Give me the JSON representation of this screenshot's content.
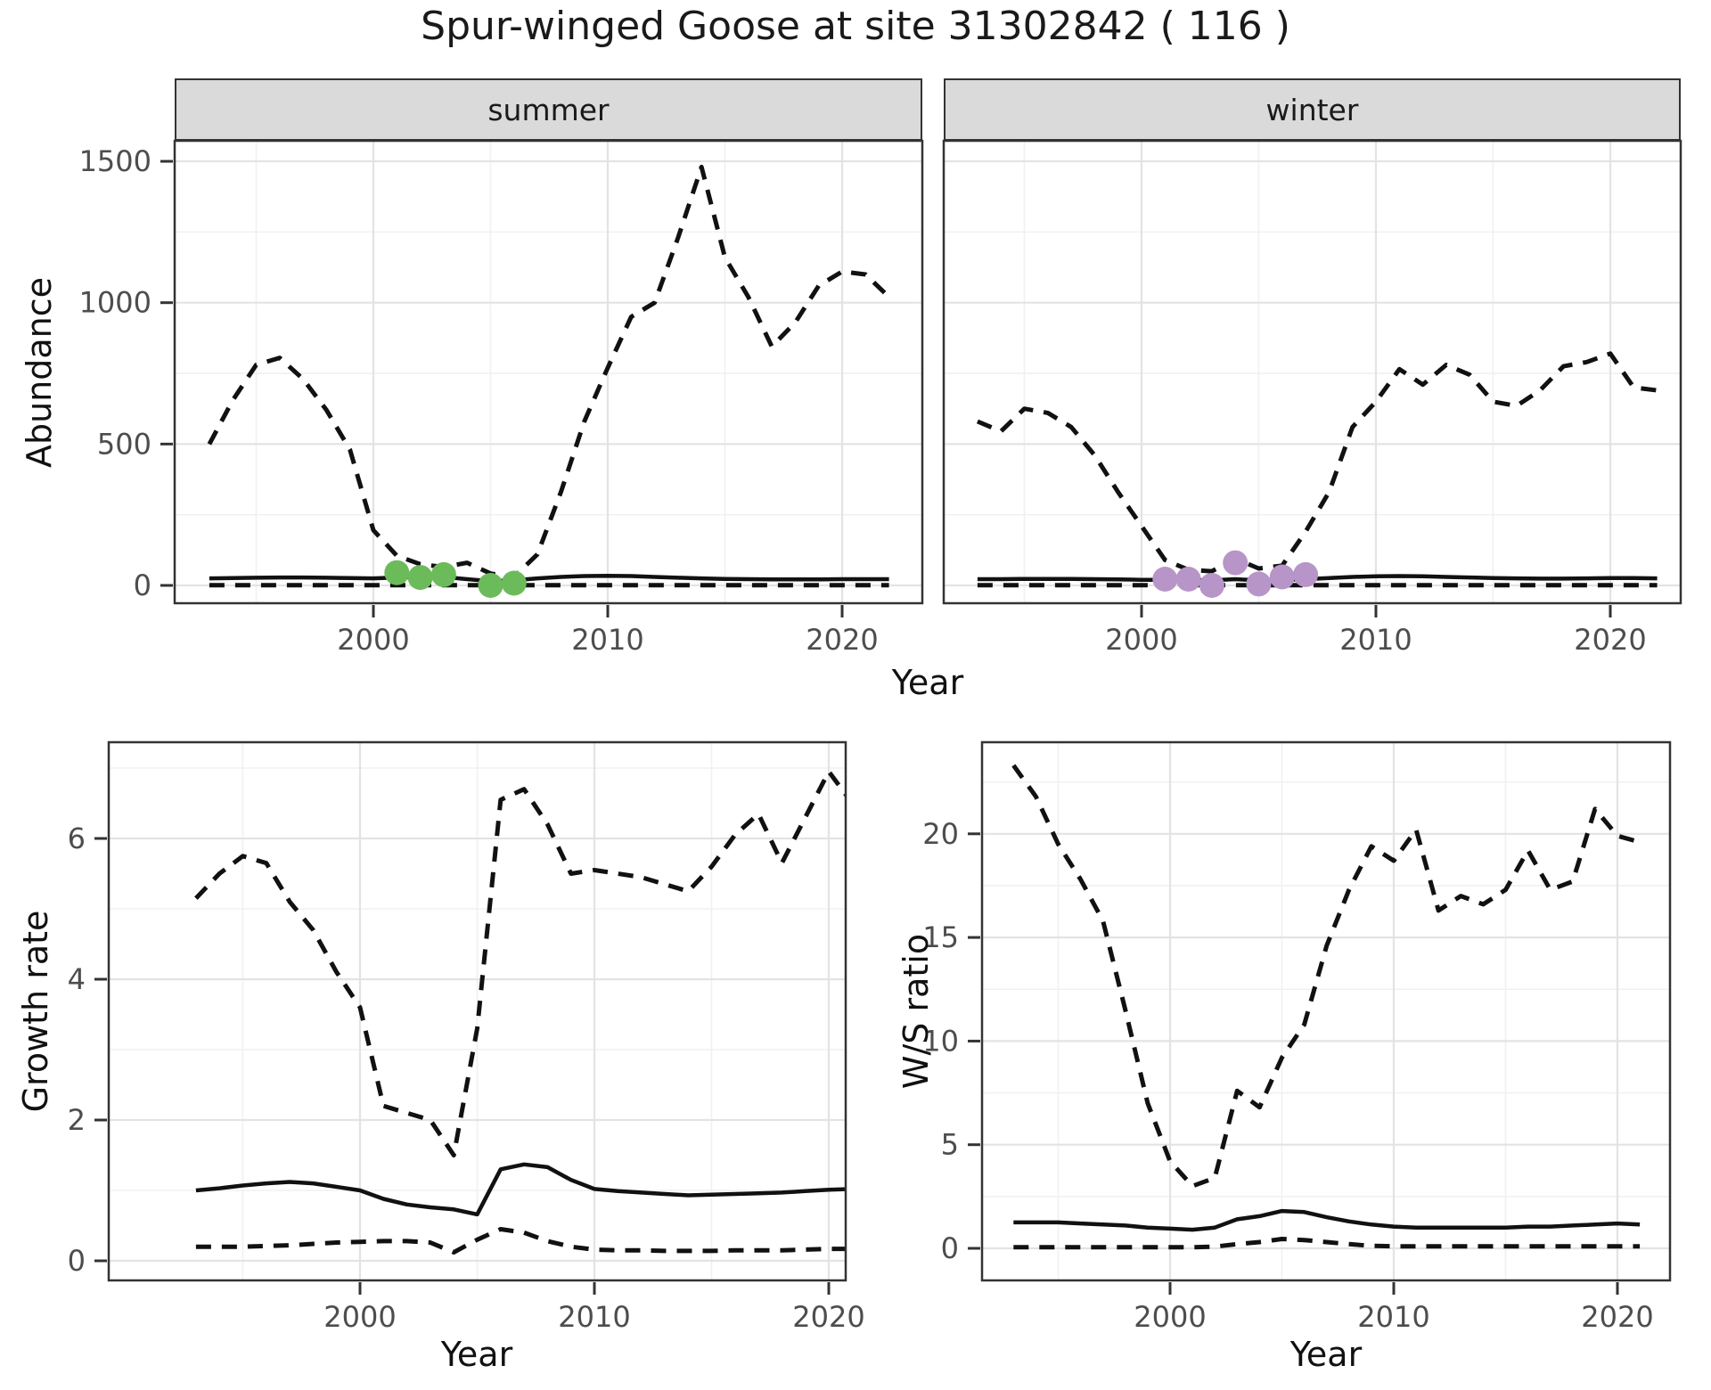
{
  "title": "Spur-winged Goose at site 31302842 ( 116 )",
  "facets": {
    "summer": "summer",
    "winter": "winter"
  },
  "axis_labels": {
    "top_x": "Year",
    "bottom_left_x": "Year",
    "bottom_right_x": "Year",
    "abundance_y": "Abundance",
    "growth_y": "Growth rate",
    "ws_y": "W/S ratio"
  },
  "colors": {
    "line": "#111111",
    "grid_major": "#e3e3e3",
    "grid_minor": "#f1f1f1",
    "panel_border": "#333333",
    "strip_bg": "#dadada",
    "tick_text": "#4d4d4d",
    "summer_point": "#6cbb5b",
    "winter_point": "#b795c8"
  },
  "chart_data": [
    {
      "id": "abundance-summer",
      "type": "line",
      "title": "summer",
      "xlabel": "Year",
      "ylabel": "Abundance",
      "x": [
        1993,
        1994,
        1995,
        1996,
        1997,
        1998,
        1999,
        2000,
        2001,
        2002,
        2003,
        2004,
        2005,
        2006,
        2007,
        2008,
        2009,
        2010,
        2011,
        2012,
        2013,
        2014,
        2015,
        2016,
        2017,
        2018,
        2019,
        2020,
        2021,
        2022
      ],
      "series": [
        {
          "name": "upper95",
          "style": "dashed",
          "values": [
            500,
            655,
            780,
            805,
            730,
            620,
            480,
            195,
            105,
            75,
            65,
            80,
            42,
            30,
            110,
            330,
            580,
            770,
            950,
            1000,
            1230,
            1480,
            1160,
            1020,
            845,
            930,
            1060,
            1110,
            1100,
            1020
          ]
        },
        {
          "name": "median",
          "style": "solid",
          "values": [
            25,
            26,
            27,
            28,
            28,
            27,
            26,
            25,
            28,
            30,
            30,
            22,
            15,
            18,
            25,
            30,
            33,
            34,
            33,
            30,
            27,
            25,
            23,
            22,
            21,
            21,
            21,
            22,
            22,
            22
          ]
        },
        {
          "name": "lower95",
          "style": "dashed",
          "values": [
            1,
            1,
            1,
            1,
            1,
            1,
            1,
            1,
            1,
            1,
            1,
            1,
            1,
            1,
            1,
            1,
            1,
            1,
            1,
            1,
            1,
            1,
            1,
            1,
            1,
            1,
            1,
            1,
            1,
            1
          ]
        }
      ],
      "points": {
        "name": "observed-counts",
        "color_key": "summer_point",
        "x": [
          2001,
          2002,
          2003,
          2005,
          2006
        ],
        "values": [
          45,
          28,
          38,
          0,
          8
        ]
      },
      "ylim": [
        -60,
        1570
      ],
      "yticks": [
        0,
        500,
        1000,
        1500
      ],
      "yticks_minor": [
        250,
        750,
        1250
      ],
      "xticks": [
        2000,
        2010,
        2020
      ],
      "xticks_minor": [
        1995,
        2005,
        2015
      ],
      "grid": "on",
      "legend": "none"
    },
    {
      "id": "abundance-winter",
      "type": "line",
      "title": "winter",
      "xlabel": "Year",
      "ylabel": "Abundance",
      "x": [
        1993,
        1994,
        1995,
        1996,
        1997,
        1998,
        1999,
        2000,
        2001,
        2002,
        2003,
        2004,
        2005,
        2006,
        2007,
        2008,
        2009,
        2010,
        2011,
        2012,
        2013,
        2014,
        2015,
        2016,
        2017,
        2018,
        2019,
        2020,
        2021,
        2022
      ],
      "series": [
        {
          "name": "upper95",
          "style": "dashed",
          "values": [
            580,
            545,
            625,
            610,
            560,
            460,
            330,
            210,
            90,
            55,
            50,
            95,
            60,
            70,
            190,
            330,
            560,
            650,
            765,
            710,
            780,
            745,
            650,
            635,
            690,
            775,
            790,
            820,
            700,
            690
          ]
        },
        {
          "name": "median",
          "style": "solid",
          "values": [
            22,
            22,
            23,
            23,
            23,
            22,
            21,
            20,
            20,
            19,
            18,
            22,
            18,
            19,
            22,
            26,
            30,
            32,
            33,
            32,
            30,
            28,
            26,
            25,
            24,
            24,
            25,
            26,
            26,
            25
          ]
        },
        {
          "name": "lower95",
          "style": "dashed",
          "values": [
            1,
            1,
            1,
            1,
            1,
            1,
            1,
            1,
            1,
            1,
            1,
            1,
            1,
            1,
            1,
            1,
            1,
            1,
            1,
            1,
            1,
            1,
            1,
            1,
            1,
            1,
            1,
            1,
            1,
            1
          ]
        }
      ],
      "points": {
        "name": "observed-counts",
        "color_key": "winter_point",
        "x": [
          2001,
          2002,
          2003,
          2004,
          2005,
          2006,
          2007
        ],
        "values": [
          22,
          22,
          0,
          80,
          5,
          30,
          38
        ]
      },
      "ylim": [
        -60,
        1570
      ],
      "yticks": [],
      "yticks_minor": [
        250,
        750,
        1250
      ],
      "xticks": [
        2000,
        2010,
        2020
      ],
      "xticks_minor": [
        1995,
        2005,
        2015
      ],
      "grid": "on",
      "legend": "none"
    },
    {
      "id": "growth-rate",
      "type": "line",
      "title": "",
      "xlabel": "Year",
      "ylabel": "Growth rate",
      "x": [
        1993,
        1994,
        1995,
        1996,
        1997,
        1998,
        1999,
        2000,
        2001,
        2002,
        2003,
        2004,
        2005,
        2006,
        2007,
        2008,
        2009,
        2010,
        2011,
        2012,
        2013,
        2014,
        2015,
        2016,
        2017,
        2018,
        2019,
        2020,
        2021
      ],
      "series": [
        {
          "name": "upper95",
          "style": "dashed",
          "values": [
            5.15,
            5.5,
            5.75,
            5.65,
            5.1,
            4.7,
            4.1,
            3.6,
            2.2,
            2.1,
            2.0,
            1.5,
            3.3,
            6.55,
            6.7,
            6.2,
            5.5,
            5.55,
            5.5,
            5.45,
            5.35,
            5.25,
            5.6,
            6.05,
            6.35,
            5.65,
            6.3,
            6.95,
            6.5
          ]
        },
        {
          "name": "median",
          "style": "solid",
          "values": [
            1.0,
            1.03,
            1.07,
            1.1,
            1.12,
            1.1,
            1.05,
            1.0,
            0.88,
            0.8,
            0.76,
            0.73,
            0.66,
            1.3,
            1.37,
            1.33,
            1.15,
            1.02,
            0.99,
            0.97,
            0.95,
            0.93,
            0.94,
            0.95,
            0.96,
            0.97,
            0.99,
            1.01,
            1.02
          ]
        },
        {
          "name": "lower95",
          "style": "dashed",
          "values": [
            0.2,
            0.2,
            0.2,
            0.21,
            0.22,
            0.24,
            0.26,
            0.27,
            0.28,
            0.28,
            0.26,
            0.12,
            0.3,
            0.45,
            0.4,
            0.28,
            0.2,
            0.16,
            0.15,
            0.15,
            0.14,
            0.14,
            0.14,
            0.15,
            0.15,
            0.15,
            0.16,
            0.17,
            0.17
          ]
        }
      ],
      "ylim": [
        -0.3,
        7.4
      ],
      "yticks": [
        0,
        2,
        4,
        6
      ],
      "yticks_minor": [
        1,
        3,
        5,
        7
      ],
      "xticks": [
        2000,
        2010,
        2020
      ],
      "xticks_minor": [
        1995,
        2005,
        2015
      ],
      "grid": "on",
      "legend": "none"
    },
    {
      "id": "ws-ratio",
      "type": "line",
      "title": "",
      "xlabel": "Year",
      "ylabel": "W/S ratio",
      "x": [
        1993,
        1994,
        1995,
        1996,
        1997,
        1998,
        1999,
        2000,
        2001,
        2002,
        2003,
        2004,
        2005,
        2006,
        2007,
        2008,
        2009,
        2010,
        2011,
        2012,
        2013,
        2014,
        2015,
        2016,
        2017,
        2018,
        2019,
        2020,
        2021
      ],
      "series": [
        {
          "name": "upper95",
          "style": "dashed",
          "values": [
            23.3,
            21.8,
            19.5,
            17.8,
            15.8,
            11.5,
            7.0,
            4.2,
            3.0,
            3.4,
            7.6,
            6.8,
            9.2,
            10.8,
            14.6,
            17.3,
            19.4,
            18.7,
            20.2,
            16.3,
            17.0,
            16.6,
            17.3,
            19.2,
            17.3,
            17.7,
            21.2,
            19.9,
            19.6
          ]
        },
        {
          "name": "median",
          "style": "solid",
          "values": [
            1.25,
            1.25,
            1.25,
            1.2,
            1.15,
            1.1,
            1.0,
            0.95,
            0.9,
            1.0,
            1.4,
            1.55,
            1.8,
            1.75,
            1.5,
            1.3,
            1.15,
            1.05,
            1.0,
            1.0,
            1.0,
            1.0,
            1.0,
            1.05,
            1.05,
            1.1,
            1.15,
            1.2,
            1.15
          ]
        },
        {
          "name": "lower95",
          "style": "dashed",
          "values": [
            0.05,
            0.05,
            0.05,
            0.05,
            0.05,
            0.05,
            0.05,
            0.05,
            0.05,
            0.08,
            0.2,
            0.3,
            0.45,
            0.4,
            0.3,
            0.2,
            0.12,
            0.1,
            0.1,
            0.1,
            0.1,
            0.1,
            0.1,
            0.1,
            0.1,
            0.1,
            0.1,
            0.1,
            0.1
          ]
        }
      ],
      "ylim": [
        -1.6,
        24.4
      ],
      "yticks": [
        0,
        5,
        10,
        15,
        20
      ],
      "yticks_minor": [
        2.5,
        7.5,
        12.5,
        17.5,
        22.5
      ],
      "xticks": [
        2000,
        2010,
        2020
      ],
      "xticks_minor": [
        1995,
        2005,
        2015
      ],
      "grid": "on",
      "legend": "none"
    }
  ]
}
